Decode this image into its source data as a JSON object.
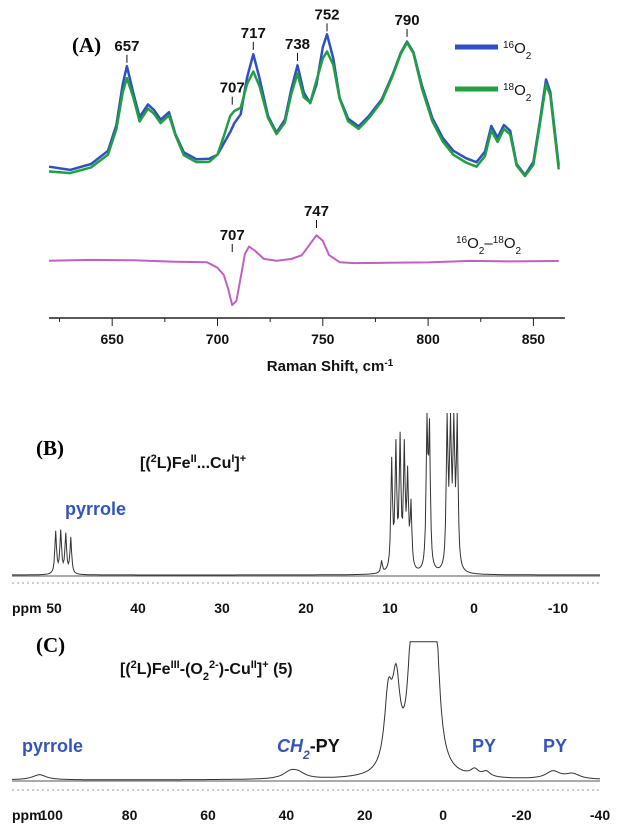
{
  "chart_data": [
    {
      "panel": "(A)",
      "type": "line",
      "xlabel": "Raman Shift, cm-1",
      "xlabel_main": "Raman Shift, cm",
      "xlabel_sup": "-1",
      "xlim": [
        620,
        865
      ],
      "xticks": [
        650,
        700,
        750,
        800,
        850
      ],
      "legend_placement": "top-right",
      "colors": {
        "o16": "#3050c0",
        "o18": "#20a040",
        "diff": "#c060c0"
      },
      "series": [
        {
          "name": "16O2",
          "name_pre": "16",
          "name_base": "O",
          "name_sub": "2",
          "color": "#3050c0",
          "x": [
            620,
            630,
            640,
            648,
            652,
            655,
            657,
            660,
            663,
            667,
            670,
            673,
            677,
            680,
            684,
            690,
            696,
            700,
            703,
            706,
            708,
            711,
            714,
            717,
            720,
            724,
            728,
            732,
            735,
            738,
            741,
            744,
            747,
            750,
            752,
            755,
            758,
            762,
            767,
            772,
            778,
            783,
            787,
            790,
            793,
            797,
            802,
            807,
            812,
            818,
            823,
            827,
            830,
            833,
            836,
            839,
            842,
            846,
            850,
            853,
            856,
            858,
            862
          ],
          "y": [
            0.18,
            0.16,
            0.19,
            0.26,
            0.4,
            0.62,
            0.72,
            0.58,
            0.45,
            0.52,
            0.49,
            0.44,
            0.48,
            0.36,
            0.26,
            0.22,
            0.22,
            0.24,
            0.3,
            0.36,
            0.41,
            0.46,
            0.66,
            0.79,
            0.66,
            0.46,
            0.37,
            0.44,
            0.6,
            0.73,
            0.58,
            0.52,
            0.62,
            0.82,
            0.89,
            0.76,
            0.55,
            0.44,
            0.4,
            0.46,
            0.55,
            0.68,
            0.8,
            0.86,
            0.8,
            0.62,
            0.44,
            0.33,
            0.26,
            0.22,
            0.2,
            0.26,
            0.4,
            0.34,
            0.41,
            0.38,
            0.2,
            0.14,
            0.21,
            0.42,
            0.65,
            0.58,
            0.18
          ]
        },
        {
          "name": "18O2",
          "name_pre": "18",
          "name_base": "O",
          "name_sub": "2",
          "color": "#20a040",
          "x": [
            620,
            630,
            640,
            648,
            652,
            655,
            657,
            660,
            663,
            667,
            670,
            673,
            677,
            680,
            684,
            690,
            696,
            700,
            703,
            706,
            708,
            711,
            714,
            717,
            720,
            724,
            728,
            732,
            735,
            738,
            741,
            744,
            747,
            750,
            752,
            755,
            758,
            762,
            767,
            772,
            778,
            783,
            787,
            790,
            793,
            797,
            802,
            807,
            812,
            818,
            823,
            827,
            830,
            833,
            836,
            839,
            842,
            846,
            850,
            853,
            856,
            858,
            862
          ],
          "y": [
            0.15,
            0.14,
            0.17,
            0.24,
            0.38,
            0.58,
            0.66,
            0.56,
            0.43,
            0.5,
            0.47,
            0.42,
            0.46,
            0.35,
            0.24,
            0.2,
            0.2,
            0.24,
            0.34,
            0.45,
            0.48,
            0.5,
            0.63,
            0.7,
            0.62,
            0.45,
            0.36,
            0.42,
            0.57,
            0.68,
            0.55,
            0.52,
            0.64,
            0.76,
            0.8,
            0.73,
            0.55,
            0.43,
            0.39,
            0.45,
            0.54,
            0.67,
            0.79,
            0.85,
            0.79,
            0.6,
            0.42,
            0.31,
            0.24,
            0.2,
            0.18,
            0.24,
            0.38,
            0.32,
            0.39,
            0.36,
            0.19,
            0.13,
            0.19,
            0.4,
            0.62,
            0.56,
            0.16
          ]
        },
        {
          "name": "16O2-18O2",
          "name_pre_a": "16",
          "name_base_a": "O",
          "name_sub_a": "2",
          "name_dash": "–",
          "name_pre_b": "18",
          "name_base_b": "O",
          "name_sub_b": "2",
          "color": "#c060c0",
          "x": [
            620,
            640,
            660,
            680,
            695,
            700,
            703,
            705,
            707,
            709,
            711,
            713,
            715,
            718,
            722,
            728,
            735,
            740,
            744,
            747,
            750,
            753,
            758,
            765,
            780,
            800,
            820,
            840,
            862
          ],
          "y": [
            0.0,
            0.01,
            0.01,
            0.0,
            0.0,
            -0.05,
            -0.12,
            -0.25,
            -0.42,
            -0.38,
            -0.15,
            0.08,
            0.15,
            0.1,
            0.02,
            0.0,
            0.02,
            0.06,
            0.18,
            0.27,
            0.22,
            0.08,
            0.01,
            0.0,
            0.0,
            0.0,
            0.01,
            0.0,
            0.0
          ]
        }
      ],
      "annotations": [
        "657",
        "707",
        "717",
        "738",
        "752",
        "790",
        "747",
        "707"
      ],
      "annotation_positions": [
        657,
        707,
        717,
        738,
        752,
        790,
        747,
        707
      ]
    },
    {
      "panel": "(B)",
      "type": "line",
      "title_parts": [
        "[(",
        "2",
        "L)Fe",
        "II",
        "...Cu",
        "I",
        "]",
        "+"
      ],
      "xlabel": "ppm",
      "xlim": [
        55,
        -15
      ],
      "xticks": [
        50,
        40,
        30,
        20,
        10,
        0,
        -10
      ],
      "xtick_labels": [
        "50",
        "40",
        "30",
        "20",
        "10",
        "0",
        "-10"
      ],
      "region_labels": {
        "pyrrole": "pyrrole"
      },
      "label_color": "#3355bb",
      "peaks_ppm": [
        49.8,
        49.2,
        48.6,
        48.0,
        11.0,
        9.8,
        9.3,
        8.8,
        8.3,
        7.9,
        7.5,
        5.6,
        5.3,
        3.2,
        2.8,
        2.4,
        2.0
      ],
      "peak_heights": [
        0.28,
        0.28,
        0.26,
        0.24,
        0.08,
        0.72,
        0.8,
        0.84,
        0.78,
        0.6,
        0.42,
        0.95,
        0.9,
        1.0,
        1.0,
        1.0,
        1.0
      ]
    },
    {
      "panel": "(C)",
      "type": "line",
      "title_parts": [
        "[(",
        "2",
        "L)Fe",
        "III",
        "-(O",
        "2",
        "2-",
        ")-Cu",
        "II",
        "]",
        "+",
        " (5)"
      ],
      "xlabel": "ppm",
      "xlim": [
        110,
        -40
      ],
      "xticks": [
        100,
        80,
        60,
        40,
        20,
        0,
        -20,
        -40
      ],
      "xtick_labels": [
        "100",
        "80",
        "60",
        "40",
        "20",
        "0",
        "-20",
        "-40"
      ],
      "region_labels": {
        "pyrrole": "pyrrole",
        "ch2_pre": "CH",
        "ch2_sub": "2",
        "ch2_post": "-PY",
        "py1": "PY",
        "py2": "PY"
      },
      "label_color": "#3355bb",
      "peaks_ppm": [
        103,
        39,
        37,
        14,
        12,
        8,
        6.5,
        4,
        2,
        -8,
        -11,
        -28,
        -33
      ],
      "peak_heights": [
        0.04,
        0.05,
        0.04,
        0.55,
        0.62,
        0.8,
        0.85,
        1.0,
        1.0,
        0.05,
        0.04,
        0.06,
        0.04
      ]
    }
  ]
}
